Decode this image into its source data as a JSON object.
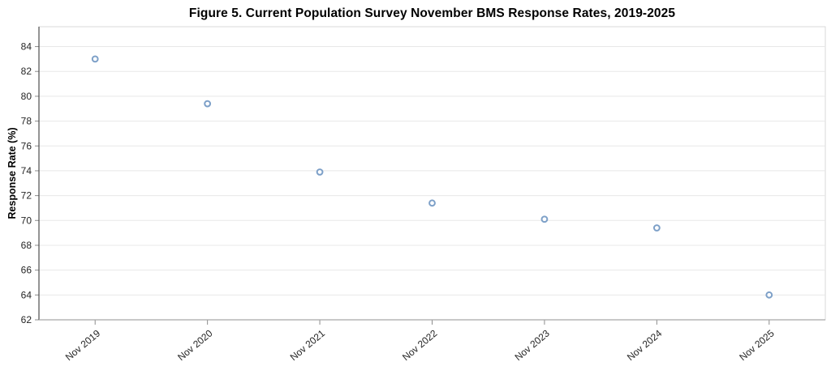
{
  "figure": {
    "title": "Figure 5. Current Population Survey November BMS Response Rates, 2019-2025"
  },
  "chart_data": {
    "type": "scatter",
    "title": "Figure 5. Current Population Survey November BMS Response Rates, 2019-2025",
    "xlabel": "",
    "ylabel": "Response Rate (%)",
    "categories": [
      "Nov 2019",
      "Nov 2020",
      "Nov 2021",
      "Nov 2022",
      "Nov 2023",
      "Nov 2024",
      "Nov 2025"
    ],
    "values": [
      83.0,
      79.4,
      73.9,
      71.4,
      70.1,
      69.4,
      64.0
    ],
    "yticks": [
      62,
      64,
      66,
      68,
      70,
      72,
      74,
      76,
      78,
      80,
      82,
      84
    ],
    "ylim": [
      62,
      85.6
    ],
    "grid": "horizontal-only",
    "legend_position": "none",
    "marker": {
      "shape": "open-circle",
      "color": "#7da0c8",
      "fill": "#ffffff"
    }
  },
  "colors": {
    "background": "#ffffff",
    "plot_border": "#d9d9d9",
    "gridline": "#e8e8e8",
    "y_axis_line": "#4d4d4d",
    "x_axis_line": "#a6a6a6",
    "y_tick": "#8c8c8c",
    "x_tick": "#8c8c8c",
    "tick_label_text": "#262626",
    "marker": "#7da0c8"
  }
}
